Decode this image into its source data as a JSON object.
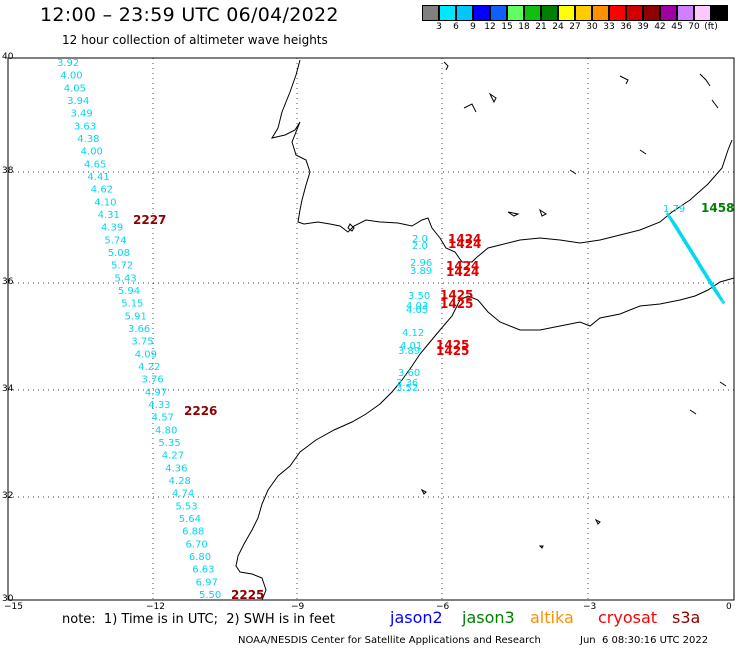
{
  "header": {
    "title": "12:00 – 23:59 UTC 06/04/2022",
    "subtitle": "12 hour collection of altimeter wave heights"
  },
  "colorbar": {
    "colors": [
      "#808080",
      "#00e8ff",
      "#00c8ff",
      "#0000ff",
      "#1060ff",
      "#60ff60",
      "#10c010",
      "#008000",
      "#ffff00",
      "#ffcc00",
      "#ff9000",
      "#ff0000",
      "#d00000",
      "#900000",
      "#a000a0",
      "#d080ff",
      "#ffc8ff",
      "#000000"
    ],
    "labels": [
      "3",
      "6",
      "9",
      "12",
      "15",
      "18",
      "21",
      "24",
      "27",
      "30",
      "33",
      "36",
      "39",
      "42",
      "45",
      "70",
      "(ft)"
    ]
  },
  "axes": {
    "lat_labels": [
      "40",
      "38",
      "36",
      "34",
      "32",
      "30"
    ],
    "lon_labels": [
      "−15",
      "−12",
      "−9",
      "−6",
      "−3",
      "0"
    ]
  },
  "tracks": {
    "west_track_values": [
      "3.92",
      "4.00",
      "4.05",
      "3.94",
      "3.49",
      "3.63",
      "4.38",
      "4.00",
      "4.65",
      "4.41",
      "4.62",
      "4.10",
      "4.31",
      "4.39",
      "5.74",
      "5.08",
      "5.72",
      "5.43",
      "5.94",
      "5.15",
      "5.91",
      "3.66",
      "3.75",
      "4.09",
      "4.22",
      "3.76",
      "4.97",
      "4.33",
      "4.57",
      "4.80",
      "5.35",
      "4.27",
      "4.36",
      "4.28",
      "4.74",
      "5.53",
      "5.64",
      "6.88",
      "6.70",
      "6.80",
      "6.63",
      "6.97",
      "5.50"
    ],
    "west_track_times": [
      "2227",
      "2226",
      "2225"
    ],
    "strait_values_grey": [
      "2.0",
      "2.0",
      "2.96"
    ],
    "strait_values_cyan": [
      "3.89",
      "3.50",
      "4.03",
      "4.05",
      "4.12",
      "4.01",
      "3.89",
      "3.60",
      "3.36",
      "3.52"
    ],
    "strait_times": [
      "1424",
      "1424",
      "1424",
      "1424",
      "1425",
      "1425",
      "1425",
      "1425"
    ],
    "med_value": "1.79",
    "med_time": "1458"
  },
  "footer": {
    "note": "note:  1) Time is in UTC;  2) SWH is in feet",
    "legend": [
      {
        "name": "jason2",
        "color": "#0000ff"
      },
      {
        "name": "jason3",
        "color": "#008000"
      },
      {
        "name": "altika",
        "color": "#ff9000"
      },
      {
        "name": "cryosat",
        "color": "#ff0000"
      },
      {
        "name": "s3a",
        "color": "#900000"
      }
    ],
    "credit": "NOAA/NESDIS Center for Satellite Applications and Research",
    "timestamp": "Jun  6 08:30:16 UTC 2022"
  }
}
